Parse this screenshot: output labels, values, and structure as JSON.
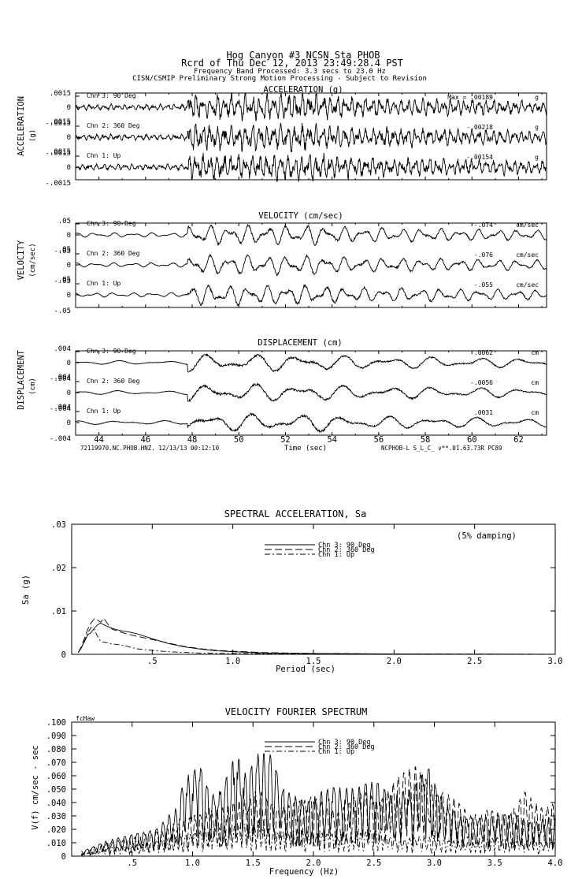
{
  "header": {
    "station_line": "Hog Canyon #3    NCSN Sta PHOB",
    "record_line": "Rcrd of Thu Dec 12, 2013 23:49:28.4 PST",
    "band_line": "Frequency Band Processed: 3.3 secs to 23.0 Hz",
    "processing_line": "CISN/CSMIP Preliminary Strong Motion Processing - Subject to Revision"
  },
  "footer": {
    "left_id": "72119970.NC.PHOB.HNZ. 12/13/13 00:12:10",
    "right_id": "NCPHOB-L  S_L_C_  v**.01.63.73R PC89",
    "time_label": "Time (sec)"
  },
  "chart_data": [
    {
      "type": "line",
      "title": "ACCELERATION (g)",
      "side_label": "ACCELERATION",
      "unit_label": "(g)",
      "x_ticks": [
        "44",
        "46",
        "48",
        "50",
        "52",
        "54",
        "56",
        "58",
        "60",
        "62"
      ],
      "xlim": [
        43,
        63.2
      ],
      "series": [
        {
          "name": "Chn 3: 90 Deg",
          "peak": ".00189",
          "peak_prefix": "Max =",
          "unit": "g",
          "ylim": [
            -0.0015,
            0.0015
          ],
          "y_ticks": [
            ".0015",
            "0",
            "-.0015"
          ]
        },
        {
          "name": "Chn 2: 360 Deg",
          "peak": "-.00218",
          "unit": "g",
          "ylim": [
            -0.0015,
            0.0015
          ],
          "y_ticks": [
            ".0015",
            "0",
            "-.0015"
          ]
        },
        {
          "name": "Chn 1: Up",
          "peak": "-.00154",
          "unit": "g",
          "ylim": [
            -0.0015,
            0.0015
          ],
          "y_ticks": [
            ".0015",
            "0",
            "-.0015"
          ]
        }
      ]
    },
    {
      "type": "line",
      "title": "VELOCITY (cm/sec)",
      "side_label": "VELOCITY",
      "unit_label": "(cm/sec)",
      "x_ticks": [
        "44",
        "46",
        "48",
        "50",
        "52",
        "54",
        "56",
        "58",
        "60",
        "62"
      ],
      "xlim": [
        43,
        63.2
      ],
      "series": [
        {
          "name": "Chn 3: 90 Deg",
          "peak": "-.074",
          "unit": "cm/sec",
          "ylim": [
            -0.05,
            0.05
          ],
          "y_ticks": [
            ".05",
            "0",
            "-.05"
          ]
        },
        {
          "name": "Chn 2: 360 Deg",
          "peak": "-.076",
          "unit": "cm/sec",
          "ylim": [
            -0.05,
            0.05
          ],
          "y_ticks": [
            ".05",
            "0",
            "-.05"
          ]
        },
        {
          "name": "Chn 1: Up",
          "peak": "-.055",
          "unit": "cm/sec",
          "ylim": [
            -0.05,
            0.05
          ],
          "y_ticks": [
            ".05",
            "0",
            "-.05"
          ]
        }
      ]
    },
    {
      "type": "line",
      "title": "DISPLACEMENT (cm)",
      "side_label": "DISPLACEMENT",
      "unit_label": "(cm)",
      "x_ticks": [
        "44",
        "46",
        "48",
        "50",
        "52",
        "54",
        "56",
        "58",
        "60",
        "62"
      ],
      "xlim": [
        43,
        63.2
      ],
      "series": [
        {
          "name": "Chn 3: 90 Deg",
          "peak": ".0062",
          "unit": "cm",
          "ylim": [
            -0.004,
            0.004
          ],
          "y_ticks": [
            ".004",
            "0",
            "-.004"
          ]
        },
        {
          "name": "Chn 2: 360 Deg",
          "peak": "-.0056",
          "unit": "cm",
          "ylim": [
            -0.004,
            0.004
          ],
          "y_ticks": [
            ".004",
            "0",
            "-.004"
          ]
        },
        {
          "name": "Chn 1: Up",
          "peak": ".0031",
          "unit": "cm",
          "ylim": [
            -0.004,
            0.004
          ],
          "y_ticks": [
            ".004",
            "0",
            "-.004"
          ]
        }
      ]
    },
    {
      "type": "line",
      "title": "SPECTRAL ACCELERATION, Sa",
      "xlabel": "Period (sec)",
      "ylabel": "Sa (g)",
      "annotation": "(5% damping)",
      "xlim": [
        0,
        3.0
      ],
      "ylim": [
        0,
        0.03
      ],
      "x_ticks": [
        {
          "v": 0.5,
          "label": ".5"
        },
        {
          "v": 1.0,
          "label": "1.0"
        },
        {
          "v": 1.5,
          "label": "1.5"
        },
        {
          "v": 2.0,
          "label": "2.0"
        },
        {
          "v": 2.5,
          "label": "2.5"
        },
        {
          "v": 3.0,
          "label": "3.0"
        }
      ],
      "y_ticks": [
        {
          "v": 0,
          "label": "0"
        },
        {
          "v": 0.01,
          "label": ".01"
        },
        {
          "v": 0.02,
          "label": ".02"
        },
        {
          "v": 0.03,
          "label": ".03"
        }
      ],
      "legend": [
        "Chn 3: 90 Deg",
        "Chn 2: 360 Deg",
        "Chn 1: Up"
      ],
      "series": [
        {
          "name": "Chn 3: 90 Deg",
          "dash": "solid",
          "x": [
            0.04,
            0.06,
            0.08,
            0.1,
            0.12,
            0.14,
            0.16,
            0.18,
            0.2,
            0.25,
            0.3,
            0.35,
            0.4,
            0.5,
            0.6,
            0.7,
            0.8,
            0.9,
            1.0,
            1.2,
            1.5,
            2.0,
            2.5,
            3.0
          ],
          "y": [
            0.0004,
            0.0015,
            0.003,
            0.0045,
            0.005,
            0.006,
            0.0068,
            0.0072,
            0.0068,
            0.006,
            0.0055,
            0.0052,
            0.0048,
            0.0036,
            0.0025,
            0.0017,
            0.0012,
            0.0008,
            0.0006,
            0.0003,
            0.0002,
            8e-05,
            4e-05,
            2e-05
          ]
        },
        {
          "name": "Chn 2: 360 Deg",
          "dash": "dash",
          "x": [
            0.04,
            0.06,
            0.08,
            0.1,
            0.12,
            0.14,
            0.16,
            0.18,
            0.2,
            0.22,
            0.25,
            0.3,
            0.35,
            0.4,
            0.5,
            0.6,
            0.7,
            0.8,
            0.9,
            1.0,
            1.2,
            1.5,
            2.0,
            2.5,
            3.0
          ],
          "y": [
            0.0004,
            0.0018,
            0.0038,
            0.0058,
            0.0072,
            0.0082,
            0.0079,
            0.0074,
            0.0083,
            0.0072,
            0.0058,
            0.0052,
            0.0046,
            0.0042,
            0.0034,
            0.0026,
            0.0018,
            0.0013,
            0.0009,
            0.0007,
            0.0004,
            0.0002,
            0.0001,
            5e-05,
            2e-05
          ]
        },
        {
          "name": "Chn 1: Up",
          "dash": "dashdot",
          "x": [
            0.04,
            0.06,
            0.08,
            0.1,
            0.12,
            0.14,
            0.16,
            0.18,
            0.2,
            0.25,
            0.3,
            0.35,
            0.4,
            0.5,
            0.6,
            0.8,
            1.0,
            1.5,
            2.0,
            3.0
          ],
          "y": [
            0.0004,
            0.0015,
            0.0032,
            0.005,
            0.0062,
            0.0057,
            0.0042,
            0.003,
            0.0028,
            0.0024,
            0.0022,
            0.0018,
            0.0013,
            0.0009,
            0.0006,
            0.0003,
            0.0002,
            0.0001,
            4e-05,
            2e-05
          ]
        }
      ]
    },
    {
      "type": "line",
      "title": "VELOCITY FOURIER SPECTRUM",
      "xlabel": "Frequency (Hz)",
      "ylabel": "V(f)   cm/sec - sec",
      "corner_label": "fcHaw",
      "xlim": [
        0,
        4.0
      ],
      "ylim": [
        0,
        0.1
      ],
      "x_ticks": [
        {
          "v": 0.5,
          "label": ".5"
        },
        {
          "v": 1.0,
          "label": "1.0"
        },
        {
          "v": 1.5,
          "label": "1.5"
        },
        {
          "v": 2.0,
          "label": "2.0"
        },
        {
          "v": 2.5,
          "label": "2.5"
        },
        {
          "v": 3.0,
          "label": "3.0"
        },
        {
          "v": 3.5,
          "label": "3.5"
        },
        {
          "v": 4.0,
          "label": "4.0"
        }
      ],
      "y_ticks": [
        {
          "v": 0,
          "label": "0"
        },
        {
          "v": 0.01,
          "label": ".010"
        },
        {
          "v": 0.02,
          "label": ".020"
        },
        {
          "v": 0.03,
          "label": ".030"
        },
        {
          "v": 0.04,
          "label": ".040"
        },
        {
          "v": 0.05,
          "label": ".050"
        },
        {
          "v": 0.06,
          "label": ".060"
        },
        {
          "v": 0.07,
          "label": ".070"
        },
        {
          "v": 0.08,
          "label": ".080"
        },
        {
          "v": 0.09,
          "label": ".090"
        },
        {
          "v": 0.1,
          "label": ".100"
        }
      ],
      "legend": [
        "Chn 3: 90 Deg",
        "Chn 2: 360 Deg",
        "Chn 1: Up"
      ],
      "series": [
        {
          "name": "Chn 3: 90 Deg",
          "dash": "solid",
          "x": [
            0.1,
            0.3,
            0.5,
            0.7,
            0.85,
            0.95,
            1.05,
            1.15,
            1.25,
            1.35,
            1.45,
            1.55,
            1.65,
            1.75,
            1.85,
            1.95,
            2.05,
            2.2,
            2.35,
            2.5,
            2.65,
            2.8,
            2.95,
            3.05,
            3.2,
            3.35,
            3.5,
            3.65,
            3.8,
            4.0
          ],
          "y": [
            0.004,
            0.012,
            0.016,
            0.02,
            0.035,
            0.06,
            0.07,
            0.045,
            0.05,
            0.08,
            0.06,
            0.078,
            0.076,
            0.05,
            0.045,
            0.04,
            0.048,
            0.052,
            0.05,
            0.057,
            0.045,
            0.05,
            0.066,
            0.045,
            0.03,
            0.028,
            0.03,
            0.032,
            0.025,
            0.03
          ]
        },
        {
          "name": "Chn 2: 360 Deg",
          "dash": "dash",
          "x": [
            0.1,
            0.3,
            0.5,
            0.7,
            0.85,
            1.0,
            1.2,
            1.4,
            1.55,
            1.7,
            1.85,
            2.0,
            2.2,
            2.4,
            2.55,
            2.7,
            2.85,
            3.0,
            3.15,
            3.3,
            3.45,
            3.6,
            3.75,
            3.9,
            4.0
          ],
          "y": [
            0.003,
            0.01,
            0.014,
            0.018,
            0.022,
            0.03,
            0.035,
            0.042,
            0.05,
            0.035,
            0.04,
            0.045,
            0.032,
            0.05,
            0.04,
            0.06,
            0.068,
            0.05,
            0.045,
            0.03,
            0.035,
            0.03,
            0.048,
            0.035,
            0.04
          ]
        },
        {
          "name": "Chn 1: Up",
          "dash": "dashdot",
          "x": [
            0.1,
            0.3,
            0.5,
            0.7,
            0.9,
            1.1,
            1.3,
            1.5,
            1.7,
            1.9,
            2.1,
            2.3,
            2.5,
            2.7,
            2.9,
            3.1,
            3.3,
            3.5,
            3.7,
            3.9,
            4.0
          ],
          "y": [
            0.002,
            0.006,
            0.008,
            0.012,
            0.015,
            0.02,
            0.022,
            0.025,
            0.018,
            0.02,
            0.017,
            0.015,
            0.02,
            0.012,
            0.015,
            0.012,
            0.01,
            0.014,
            0.012,
            0.01,
            0.015
          ]
        }
      ]
    }
  ]
}
